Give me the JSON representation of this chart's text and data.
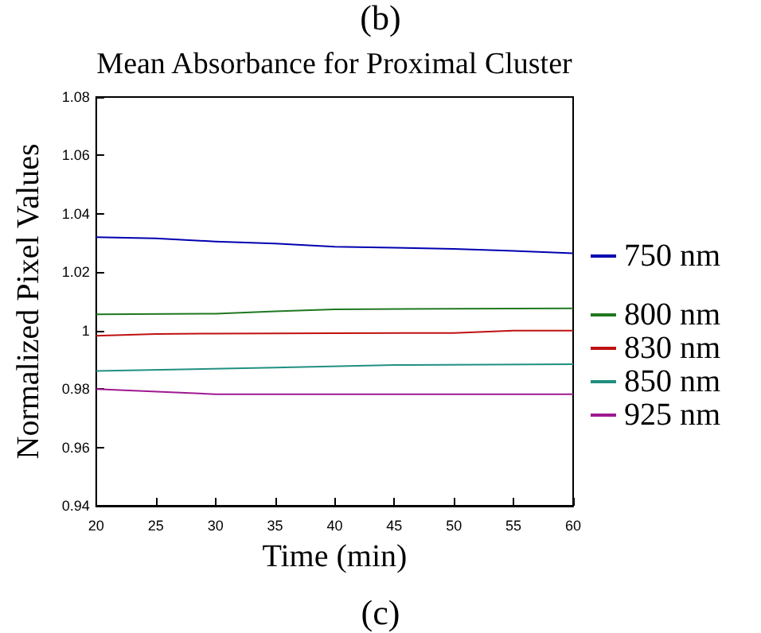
{
  "chart_data": {
    "type": "line",
    "title": "Mean Absorbance for Proximal Cluster",
    "xlabel": "Time (min)",
    "ylabel": "Normalized Pixel Values",
    "annotations": [
      "(b)",
      "(c)"
    ],
    "xlim": [
      20,
      60
    ],
    "xticks": [
      20,
      25,
      30,
      35,
      40,
      45,
      50,
      55,
      60
    ],
    "ylim": [
      0.94,
      1.08
    ],
    "yticks": [
      0.94,
      0.96,
      0.98,
      1,
      1.02,
      1.04,
      1.06,
      1.08
    ],
    "grid": false,
    "legend": "right",
    "marker": "none",
    "line_style": "solid",
    "series": [
      {
        "name": "750 nm",
        "color": "#0000b0",
        "x": [
          20,
          25,
          30,
          35,
          40,
          45,
          50,
          55,
          60
        ],
        "values": [
          1.032,
          1.0316,
          1.0305,
          1.0298,
          1.0287,
          1.0284,
          1.028,
          1.0273,
          1.0265
        ]
      },
      {
        "name": "800 nm",
        "color": "#207820",
        "x": [
          20,
          30,
          35,
          40,
          50,
          60
        ],
        "values": [
          1.0056,
          1.0058,
          1.0066,
          1.0073,
          1.0075,
          1.0076
        ]
      },
      {
        "name": "830 nm",
        "color": "#c01010",
        "x": [
          20,
          25,
          30,
          40,
          50,
          55,
          60
        ],
        "values": [
          0.9982,
          0.9988,
          0.999,
          0.9991,
          0.9992,
          1.0,
          1.0
        ]
      },
      {
        "name": "850 nm",
        "color": "#209080",
        "x": [
          20,
          35,
          45,
          60
        ],
        "values": [
          0.9862,
          0.9873,
          0.9882,
          0.9885
        ]
      },
      {
        "name": "925 nm",
        "color": "#a01890",
        "x": [
          20,
          30,
          60
        ],
        "values": [
          0.98,
          0.9782,
          0.9782
        ]
      }
    ]
  }
}
